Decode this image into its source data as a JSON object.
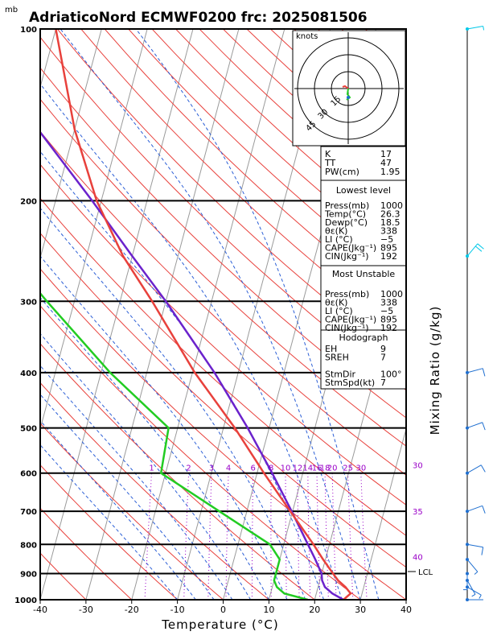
{
  "chart_data": {
    "type": "skew-t",
    "title": "AdriaticoNord ECMWF0200 frc: 2025081506",
    "pressure_unit": "mb",
    "xlabel": "Temperature (°C)",
    "right_axis_label": "Mixing Ratio (g/kg)",
    "x_ticks": [
      -40,
      -30,
      -20,
      -10,
      0,
      10,
      20,
      30,
      40
    ],
    "xlim": [
      -40,
      40
    ],
    "ylim": [
      1000,
      100
    ],
    "pressure_levels": [
      100,
      200,
      300,
      400,
      500,
      600,
      700,
      800,
      900,
      1000
    ],
    "mixing_ratio_labels": [
      "1",
      "2",
      "3",
      "4",
      "6",
      "8",
      "10",
      "12",
      "14",
      "16",
      "18",
      "20",
      "25",
      "30"
    ],
    "mixing_ratio_values": [
      1,
      2,
      3,
      4,
      6,
      8,
      10,
      12,
      14,
      16,
      18,
      20,
      25,
      30
    ],
    "isotherm_labels": [
      "30",
      "35",
      "40"
    ],
    "isotherm_label_pressures": [
      580,
      700,
      840
    ],
    "lcl_label": "LCL",
    "lcl_pressure": 900,
    "temperature_profile": {
      "color": "#e8413c",
      "points": [
        {
          "p": 1000,
          "t": 26.3
        },
        {
          "p": 975,
          "t": 27.5
        },
        {
          "p": 950,
          "t": 26.0
        },
        {
          "p": 925,
          "t": 24.0
        },
        {
          "p": 900,
          "t": 22.5
        },
        {
          "p": 850,
          "t": 19.5
        },
        {
          "p": 800,
          "t": 16.5
        },
        {
          "p": 700,
          "t": 9.5
        },
        {
          "p": 600,
          "t": 1.5
        },
        {
          "p": 500,
          "t": -7.5
        },
        {
          "p": 400,
          "t": -19.5
        },
        {
          "p": 300,
          "t": -33.0
        },
        {
          "p": 250,
          "t": -42.0
        },
        {
          "p": 200,
          "t": -51.0
        },
        {
          "p": 150,
          "t": -60.0
        },
        {
          "p": 100,
          "t": -70.0
        }
      ]
    },
    "dewpoint_profile": {
      "color": "#22cc22",
      "points": [
        {
          "p": 1000,
          "t": 18.5
        },
        {
          "p": 975,
          "t": 13.0
        },
        {
          "p": 950,
          "t": 11.0
        },
        {
          "p": 925,
          "t": 10.0
        },
        {
          "p": 900,
          "t": 10.0
        },
        {
          "p": 850,
          "t": 10.0
        },
        {
          "p": 800,
          "t": 7.0
        },
        {
          "p": 700,
          "t": -6.0
        },
        {
          "p": 600,
          "t": -21.0
        },
        {
          "p": 500,
          "t": -22.0
        },
        {
          "p": 400,
          "t": -38.0
        },
        {
          "p": 300,
          "t": -56.0
        },
        {
          "p": 250,
          "t": -67.0
        },
        {
          "p": 200,
          "t": -73.0
        },
        {
          "p": 150,
          "t": -79.0
        },
        {
          "p": 100,
          "t": -84.0
        }
      ]
    },
    "parcel_profile": {
      "color": "#6b22cc",
      "points": [
        {
          "p": 1000,
          "t": 26.3
        },
        {
          "p": 975,
          "t": 23.5
        },
        {
          "p": 950,
          "t": 21.5
        },
        {
          "p": 925,
          "t": 20.5
        },
        {
          "p": 900,
          "t": 20.0
        },
        {
          "p": 850,
          "t": 17.8
        },
        {
          "p": 800,
          "t": 15.3
        },
        {
          "p": 700,
          "t": 9.8
        },
        {
          "p": 600,
          "t": 3.3
        },
        {
          "p": 500,
          "t": -4.7
        },
        {
          "p": 400,
          "t": -15.2
        },
        {
          "p": 300,
          "t": -30.0
        },
        {
          "p": 250,
          "t": -40.0
        },
        {
          "p": 200,
          "t": -52.0
        },
        {
          "p": 150,
          "t": -68.0
        },
        {
          "p": 100,
          "t": -88.0
        }
      ]
    },
    "wind_barbs": [
      {
        "p": 1000,
        "dir": 90,
        "spd": 2
      },
      {
        "p": 950,
        "dir": 120,
        "spd": 7
      },
      {
        "p": 925,
        "dir": 150,
        "spd": 7
      },
      {
        "p": 900,
        "dir": 180,
        "spd": 5
      },
      {
        "p": 850,
        "dir": 140,
        "spd": 7
      },
      {
        "p": 800,
        "dir": 100,
        "spd": 10
      },
      {
        "p": 700,
        "dir": 70,
        "spd": 10
      },
      {
        "p": 600,
        "dir": 60,
        "spd": 10
      },
      {
        "p": 500,
        "dir": 70,
        "spd": 12
      },
      {
        "p": 400,
        "dir": 75,
        "spd": 10
      },
      {
        "p": 250,
        "dir": 40,
        "spd": 18
      },
      {
        "p": 100,
        "dir": 80,
        "spd": 5
      }
    ],
    "barb_colors": {
      "low": "#1f6fd0",
      "high": "#00c8e8"
    },
    "hodograph": {
      "units_label": "knots",
      "ring_labels": [
        "15",
        "30",
        "45"
      ]
    }
  },
  "indices": {
    "rows": [
      {
        "label": "K",
        "value": "17"
      },
      {
        "label": "TT",
        "value": "47"
      },
      {
        "label": "PW(cm)",
        "value": "1.95"
      }
    ],
    "lowest_level": {
      "heading": "Lowest level",
      "rows": [
        {
          "label": "Press(mb)",
          "value": "1000"
        },
        {
          "label": "Temp(°C)",
          "value": "26.3"
        },
        {
          "label": "Dewp(°C)",
          "value": "18.5"
        },
        {
          "label": "θε(K)",
          "value": "338"
        },
        {
          "label": "LI (°C)",
          "value": "−5"
        },
        {
          "label": "CAPE(Jkg⁻¹)",
          "value": "895"
        },
        {
          "label": "CIN(Jkg⁻¹)",
          "value": "192"
        }
      ]
    },
    "most_unstable": {
      "heading": "Most Unstable",
      "rows": [
        {
          "label": "Press(mb)",
          "value": "1000"
        },
        {
          "label": "θε(K)",
          "value": "338"
        },
        {
          "label": "LI (°C)",
          "value": "−5"
        },
        {
          "label": "CAPE(Jkg⁻¹)",
          "value": "895"
        },
        {
          "label": "CIN(Jkg⁻¹)",
          "value": "192"
        }
      ]
    },
    "hodograph_block": {
      "heading": "Hodograph",
      "rows": [
        {
          "label": "EH",
          "value": "9"
        },
        {
          "label": "SREH",
          "value": "7"
        },
        {
          "label": "",
          "value": ""
        },
        {
          "label": "StmDir",
          "value": "100°"
        },
        {
          "label": "StmSpd(kt)",
          "value": "7"
        }
      ]
    }
  }
}
